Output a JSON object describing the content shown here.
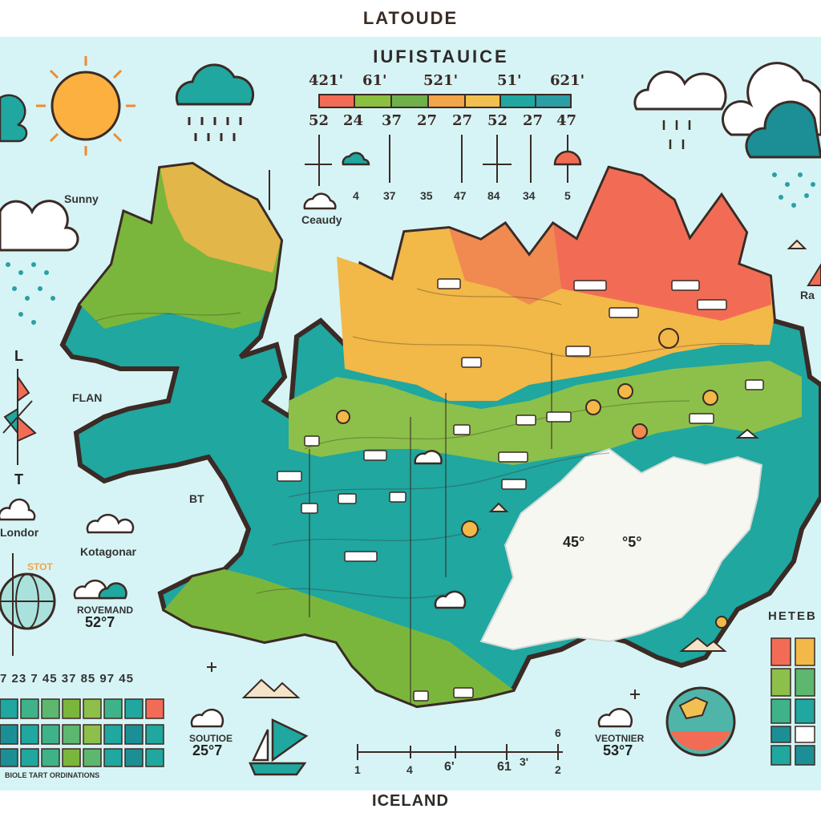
{
  "map": {
    "top_title": "LATOUDE",
    "bottom_title": "ICELAND",
    "legend_title": "IUFISTAUICE",
    "legend_top_values": [
      "421'",
      "61'",
      "521'",
      "51'",
      "621'"
    ],
    "legend_mid_values": [
      "52",
      "24",
      "37",
      "27",
      "27",
      "52",
      "27",
      "47"
    ],
    "legend_bottom_values": [
      "4",
      "37",
      "35",
      "47",
      "84",
      "34",
      "5"
    ],
    "legend_colors": [
      "#f26c55",
      "#8bbf3f",
      "#6fb04a",
      "#f2a54a",
      "#f2c050",
      "#1fa7a0",
      "#2b9fa5"
    ],
    "weather_labels": {
      "sunny": "Sunny",
      "cloudy": "Ceaudy",
      "flan": "FLAN",
      "bt": "BT",
      "londor": "Londor",
      "kotagonar": "Kotagonar",
      "left_temp_label": "ROVEMAND",
      "left_temp": "52°7",
      "bottom_left_label": "SOUTIOE",
      "bottom_left_temp": "25°7",
      "bottom_right_label": "VEOTNIER",
      "bottom_right_temp": "53°7",
      "ra": "Ra",
      "l": "L",
      "t": "T",
      "stot": "STOT",
      "scale_label": "BIOLE TART ORDINATIONS",
      "right_legend_title": "HETEB"
    },
    "map_values": {
      "east_temp_a": "45°",
      "east_temp_b": "°5°"
    },
    "left_scale_numbers": "7 23 7 45 37 85 97 45",
    "bottom_axis": [
      "1",
      "4",
      "6'",
      "61",
      "3'",
      "2"
    ],
    "bottom_axis_corner": "6",
    "colors": {
      "sea": "#d6f4f5",
      "ice": "#f7f7f2",
      "outline": "#3b2a25",
      "orange": "#f26c55",
      "teal": "#1fa7a0",
      "green": "#7bb63c",
      "yellow": "#f2b848"
    },
    "icons": [
      "sun-icon",
      "cloud-icon",
      "rain-cloud-icon",
      "globe-icon",
      "compass-icon",
      "sailboat-icon",
      "mountain-icon"
    ]
  }
}
